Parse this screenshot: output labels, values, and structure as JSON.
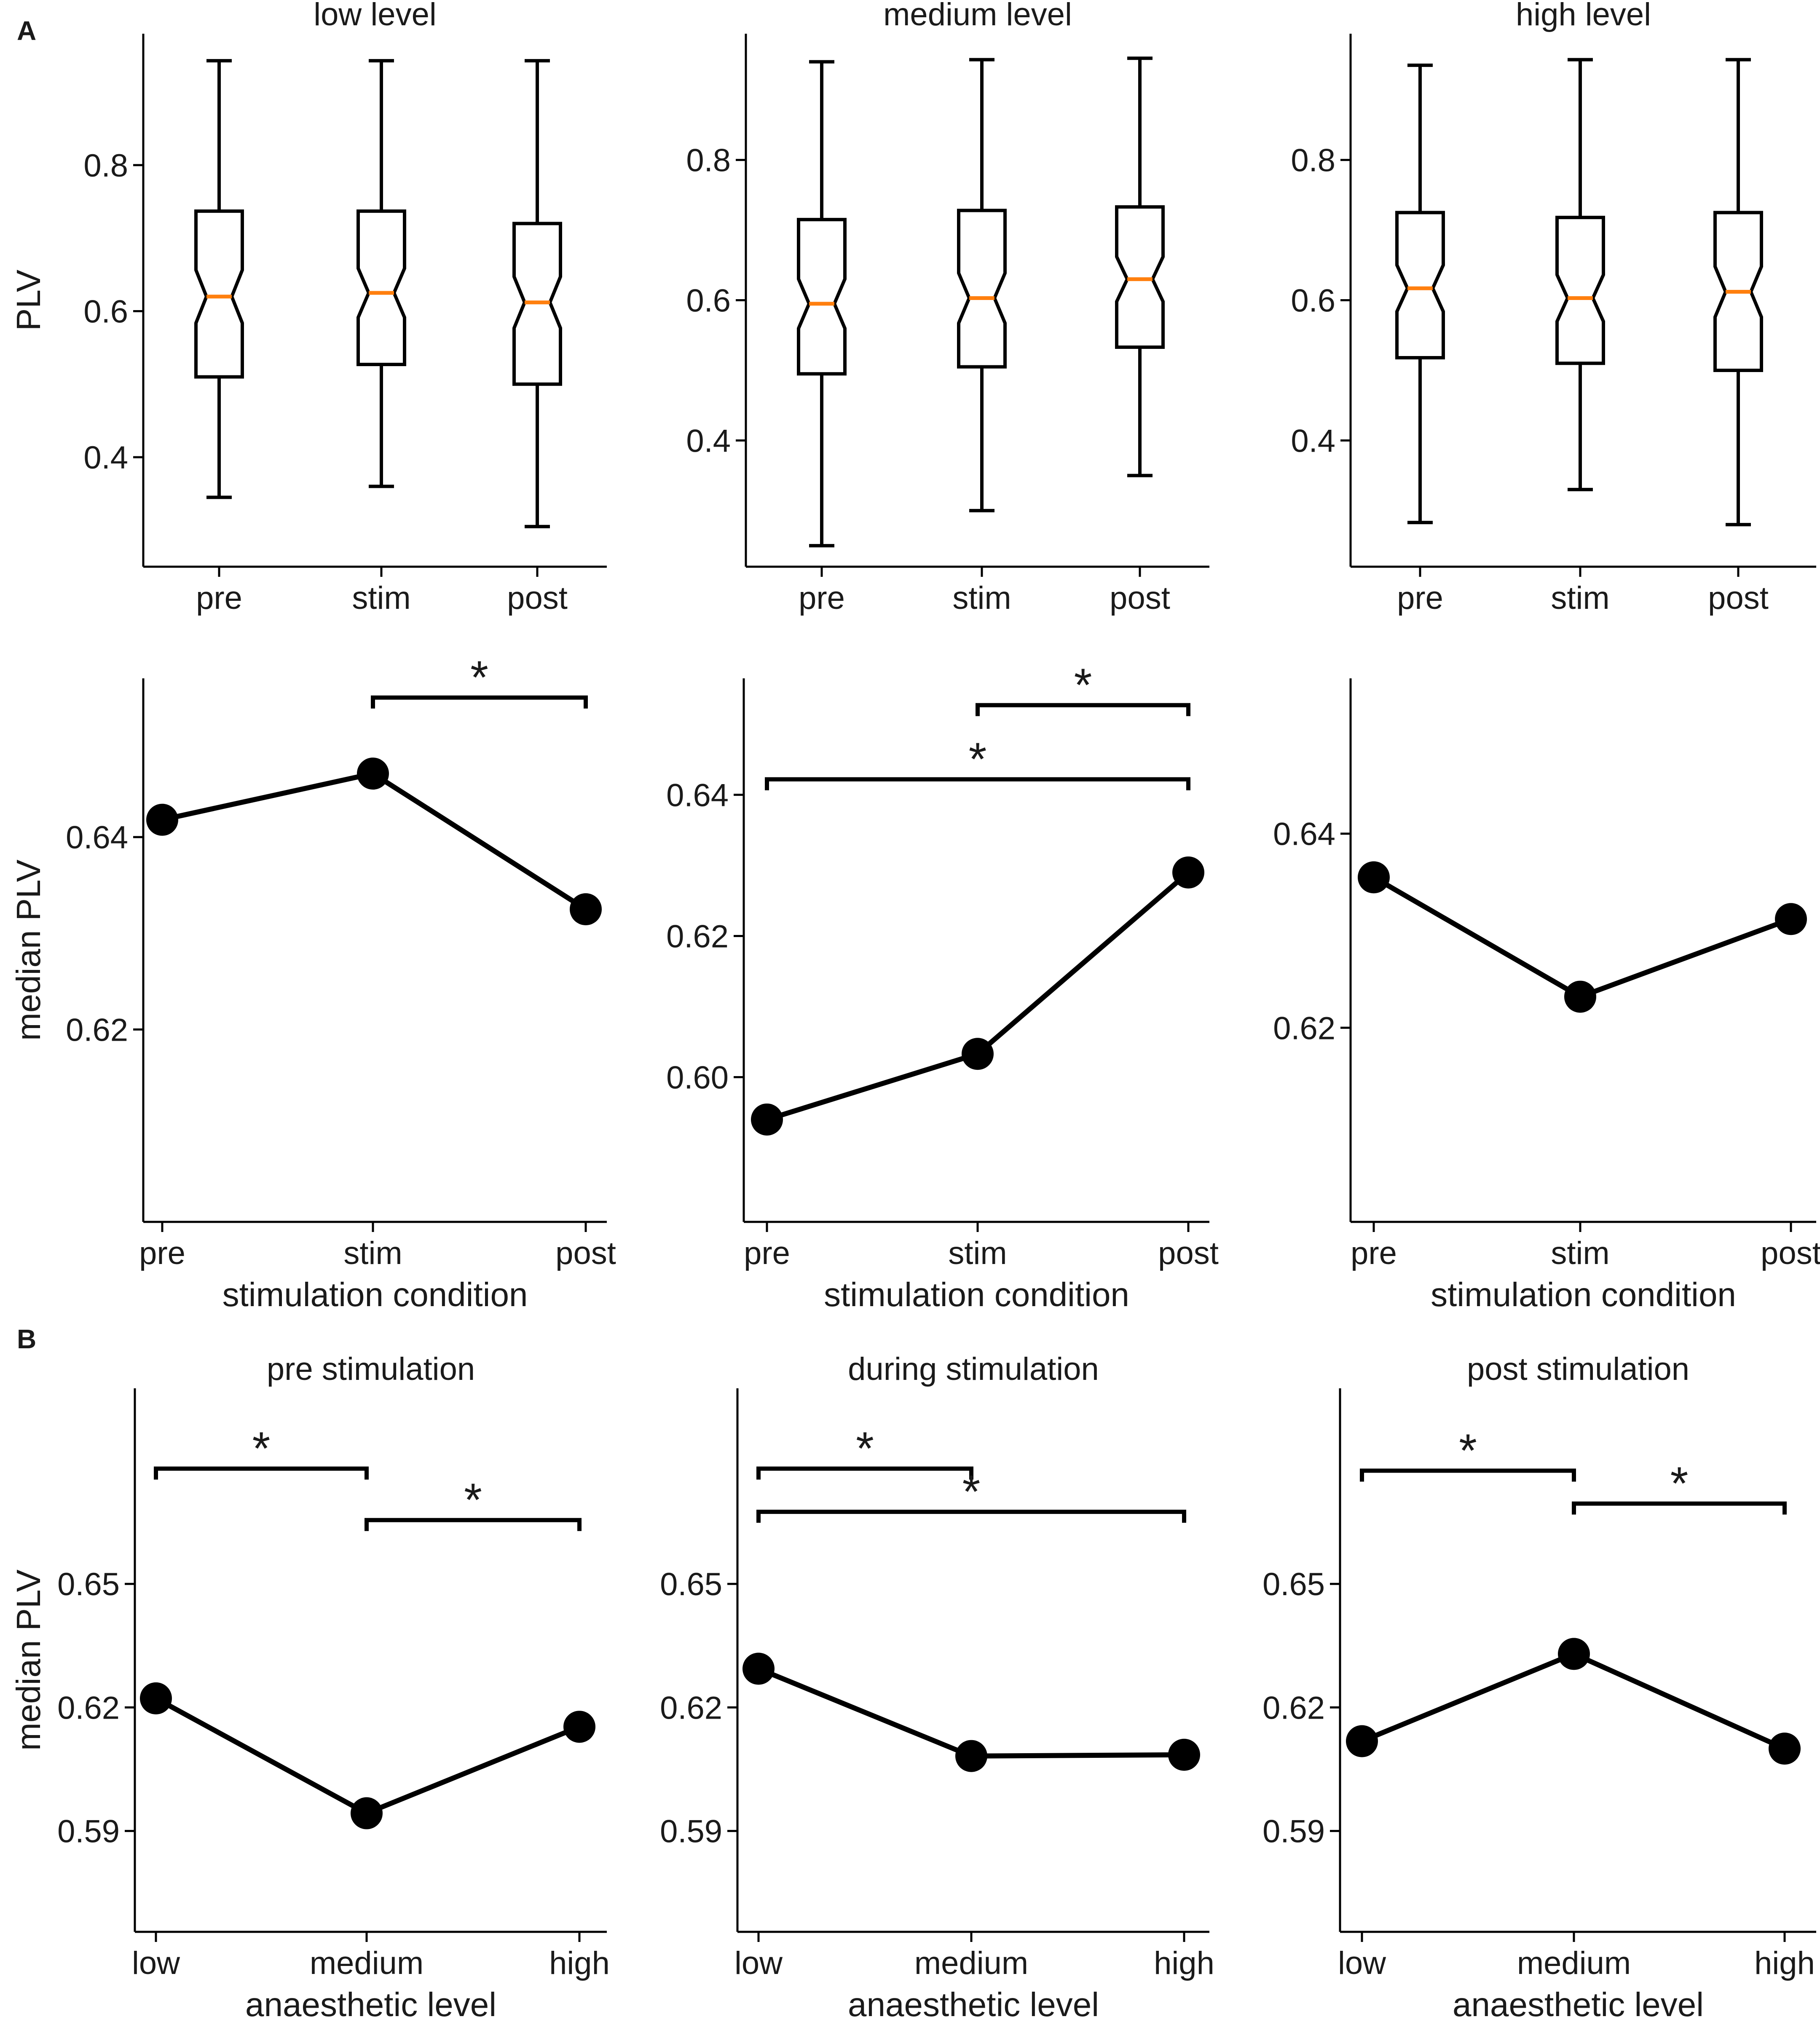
{
  "figure": {
    "section_labels": [
      "A",
      "B"
    ]
  },
  "chart_data": [
    {
      "id": "A1",
      "type": "box",
      "title": "low level",
      "ylabel": "PLV",
      "xlabel": "",
      "categories": [
        "pre",
        "stim",
        "post"
      ],
      "ylim": [
        0.25,
        0.98
      ],
      "yticks": [
        0.4,
        0.6,
        0.8
      ],
      "boxes": [
        {
          "whisker_low": 0.345,
          "q1": 0.51,
          "median": 0.62,
          "q3": 0.737,
          "whisker_high": 0.943
        },
        {
          "whisker_low": 0.36,
          "q1": 0.527,
          "median": 0.625,
          "q3": 0.737,
          "whisker_high": 0.943
        },
        {
          "whisker_low": 0.305,
          "q1": 0.5,
          "median": 0.612,
          "q3": 0.72,
          "whisker_high": 0.943
        }
      ],
      "median_color": "#ff7f0e"
    },
    {
      "id": "A2",
      "type": "box",
      "title": "medium level",
      "ylabel": "",
      "xlabel": "",
      "categories": [
        "pre",
        "stim",
        "post"
      ],
      "ylim": [
        0.22,
        0.98
      ],
      "yticks": [
        0.4,
        0.6,
        0.8
      ],
      "boxes": [
        {
          "whisker_low": 0.25,
          "q1": 0.495,
          "median": 0.595,
          "q3": 0.715,
          "whisker_high": 0.94
        },
        {
          "whisker_low": 0.3,
          "q1": 0.505,
          "median": 0.603,
          "q3": 0.728,
          "whisker_high": 0.943
        },
        {
          "whisker_low": 0.35,
          "q1": 0.533,
          "median": 0.63,
          "q3": 0.733,
          "whisker_high": 0.945
        }
      ],
      "median_color": "#ff7f0e"
    },
    {
      "id": "A3",
      "type": "box",
      "title": "high level",
      "ylabel": "",
      "xlabel": "",
      "categories": [
        "pre",
        "stim",
        "post"
      ],
      "ylim": [
        0.22,
        0.98
      ],
      "yticks": [
        0.4,
        0.6,
        0.8
      ],
      "boxes": [
        {
          "whisker_low": 0.283,
          "q1": 0.518,
          "median": 0.617,
          "q3": 0.725,
          "whisker_high": 0.935
        },
        {
          "whisker_low": 0.33,
          "q1": 0.51,
          "median": 0.603,
          "q3": 0.718,
          "whisker_high": 0.943
        },
        {
          "whisker_low": 0.28,
          "q1": 0.5,
          "median": 0.612,
          "q3": 0.725,
          "whisker_high": 0.943
        }
      ],
      "median_color": "#ff7f0e"
    },
    {
      "id": "A4",
      "type": "line",
      "title": "",
      "ylabel": "median PLV",
      "xlabel": "stimulation condition",
      "categories": [
        "pre",
        "stim",
        "post"
      ],
      "values": [
        0.6418,
        0.6466,
        0.6325
      ],
      "ylim": [
        0.6,
        0.6565
      ],
      "yticks": [
        0.62,
        0.64
      ],
      "significance": [
        {
          "from": 1,
          "to": 2,
          "level": 0.6545,
          "label": "*"
        }
      ]
    },
    {
      "id": "A5",
      "type": "line",
      "title": "",
      "ylabel": "",
      "xlabel": "stimulation condition",
      "categories": [
        "pre",
        "stim",
        "post"
      ],
      "values": [
        0.594,
        0.6033,
        0.629
      ],
      "ylim": [
        0.5795,
        0.6565
      ],
      "yticks": [
        0.6,
        0.62,
        0.64
      ],
      "significance": [
        {
          "from": 1,
          "to": 2,
          "level": 0.6527,
          "label": "*"
        },
        {
          "from": 0,
          "to": 2,
          "level": 0.6422,
          "label": "*"
        }
      ]
    },
    {
      "id": "A6",
      "type": "line",
      "title": "",
      "ylabel": "",
      "xlabel": "stimulation condition",
      "categories": [
        "pre",
        "stim",
        "post"
      ],
      "values": [
        0.6355,
        0.6232,
        0.6312
      ],
      "ylim": [
        0.6,
        0.656
      ],
      "yticks": [
        0.62,
        0.64
      ],
      "significance": []
    },
    {
      "id": "B1",
      "type": "line",
      "title": "pre stimulation",
      "ylabel": "median PLV",
      "xlabel": "anaesthetic level",
      "categories": [
        "low",
        "medium",
        "high"
      ],
      "values": [
        0.6222,
        0.5943,
        0.6153
      ],
      "ylim": [
        0.5655,
        0.6975
      ],
      "yticks": [
        0.59,
        0.62,
        0.65
      ],
      "significance": [
        {
          "from": 0,
          "to": 1,
          "level": 0.678,
          "label": "*"
        },
        {
          "from": 1,
          "to": 2,
          "level": 0.6655,
          "label": "*"
        }
      ]
    },
    {
      "id": "B2",
      "type": "line",
      "title": "during stimulation",
      "ylabel": "",
      "xlabel": "anaesthetic level",
      "categories": [
        "low",
        "medium",
        "high"
      ],
      "values": [
        0.6294,
        0.6082,
        0.6085
      ],
      "ylim": [
        0.5655,
        0.6975
      ],
      "yticks": [
        0.59,
        0.62,
        0.65
      ],
      "significance": [
        {
          "from": 0,
          "to": 1,
          "level": 0.678,
          "label": "*"
        },
        {
          "from": 0,
          "to": 2,
          "level": 0.6675,
          "label": "*"
        }
      ]
    },
    {
      "id": "B3",
      "type": "line",
      "title": "post stimulation",
      "ylabel": "",
      "xlabel": "anaesthetic level",
      "categories": [
        "low",
        "medium",
        "high"
      ],
      "values": [
        0.6118,
        0.633,
        0.61
      ],
      "ylim": [
        0.5655,
        0.6975
      ],
      "yticks": [
        0.59,
        0.62,
        0.65
      ],
      "significance": [
        {
          "from": 0,
          "to": 1,
          "level": 0.6775,
          "label": "*"
        },
        {
          "from": 1,
          "to": 2,
          "level": 0.6695,
          "label": "*"
        }
      ]
    }
  ]
}
